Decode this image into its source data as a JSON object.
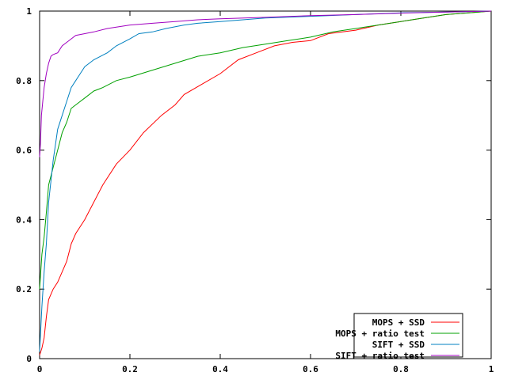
{
  "chart_data": {
    "type": "line",
    "title": "",
    "xlabel": "",
    "ylabel": "",
    "xlim": [
      0,
      1
    ],
    "ylim": [
      0,
      1
    ],
    "grid": false,
    "legend_position": "bottom-right",
    "x_ticks": [
      "0",
      "0.2",
      "0.4",
      "0.6",
      "0.8",
      "1"
    ],
    "y_ticks": [
      "0",
      "0.2",
      "0.4",
      "0.6",
      "0.8",
      "1"
    ],
    "series": [
      {
        "name": "MOPS + SSD",
        "color": "#ff0000",
        "points": [
          [
            0,
            0.01
          ],
          [
            0.005,
            0.03
          ],
          [
            0.01,
            0.06
          ],
          [
            0.015,
            0.12
          ],
          [
            0.02,
            0.17
          ],
          [
            0.03,
            0.2
          ],
          [
            0.04,
            0.22
          ],
          [
            0.05,
            0.25
          ],
          [
            0.06,
            0.28
          ],
          [
            0.07,
            0.33
          ],
          [
            0.08,
            0.36
          ],
          [
            0.1,
            0.4
          ],
          [
            0.12,
            0.45
          ],
          [
            0.14,
            0.5
          ],
          [
            0.17,
            0.56
          ],
          [
            0.2,
            0.6
          ],
          [
            0.23,
            0.65
          ],
          [
            0.27,
            0.7
          ],
          [
            0.3,
            0.73
          ],
          [
            0.32,
            0.76
          ],
          [
            0.36,
            0.79
          ],
          [
            0.4,
            0.82
          ],
          [
            0.44,
            0.86
          ],
          [
            0.48,
            0.88
          ],
          [
            0.52,
            0.9
          ],
          [
            0.56,
            0.91
          ],
          [
            0.6,
            0.915
          ],
          [
            0.64,
            0.935
          ],
          [
            0.7,
            0.945
          ],
          [
            0.75,
            0.96
          ],
          [
            0.8,
            0.97
          ],
          [
            0.85,
            0.98
          ],
          [
            0.9,
            0.99
          ],
          [
            0.95,
            0.995
          ],
          [
            1,
            1
          ]
        ]
      },
      {
        "name": "MOPS + ratio test",
        "color": "#00a000",
        "points": [
          [
            0,
            0.2
          ],
          [
            0.005,
            0.3
          ],
          [
            0.01,
            0.35
          ],
          [
            0.015,
            0.42
          ],
          [
            0.02,
            0.5
          ],
          [
            0.03,
            0.55
          ],
          [
            0.04,
            0.6
          ],
          [
            0.05,
            0.65
          ],
          [
            0.06,
            0.68
          ],
          [
            0.07,
            0.72
          ],
          [
            0.08,
            0.73
          ],
          [
            0.1,
            0.75
          ],
          [
            0.12,
            0.77
          ],
          [
            0.14,
            0.78
          ],
          [
            0.17,
            0.8
          ],
          [
            0.2,
            0.81
          ],
          [
            0.25,
            0.83
          ],
          [
            0.3,
            0.85
          ],
          [
            0.35,
            0.87
          ],
          [
            0.4,
            0.88
          ],
          [
            0.45,
            0.895
          ],
          [
            0.5,
            0.905
          ],
          [
            0.55,
            0.915
          ],
          [
            0.6,
            0.925
          ],
          [
            0.65,
            0.94
          ],
          [
            0.7,
            0.95
          ],
          [
            0.75,
            0.96
          ],
          [
            0.8,
            0.97
          ],
          [
            0.85,
            0.98
          ],
          [
            0.9,
            0.99
          ],
          [
            0.95,
            0.995
          ],
          [
            1,
            1
          ]
        ]
      },
      {
        "name": "SIFT + SSD",
        "color": "#0080c0",
        "points": [
          [
            0,
            0.02
          ],
          [
            0.005,
            0.15
          ],
          [
            0.01,
            0.25
          ],
          [
            0.015,
            0.33
          ],
          [
            0.02,
            0.45
          ],
          [
            0.03,
            0.57
          ],
          [
            0.04,
            0.66
          ],
          [
            0.05,
            0.7
          ],
          [
            0.06,
            0.74
          ],
          [
            0.07,
            0.78
          ],
          [
            0.08,
            0.8
          ],
          [
            0.09,
            0.82
          ],
          [
            0.1,
            0.84
          ],
          [
            0.12,
            0.86
          ],
          [
            0.15,
            0.88
          ],
          [
            0.17,
            0.9
          ],
          [
            0.2,
            0.92
          ],
          [
            0.22,
            0.935
          ],
          [
            0.25,
            0.94
          ],
          [
            0.28,
            0.95
          ],
          [
            0.32,
            0.96
          ],
          [
            0.35,
            0.965
          ],
          [
            0.4,
            0.97
          ],
          [
            0.45,
            0.975
          ],
          [
            0.5,
            0.98
          ],
          [
            0.6,
            0.985
          ],
          [
            0.7,
            0.99
          ],
          [
            0.8,
            0.995
          ],
          [
            0.9,
            0.997
          ],
          [
            1,
            1
          ]
        ]
      },
      {
        "name": "SIFT + ratio test",
        "color": "#a000c0",
        "points": [
          [
            0,
            0.58
          ],
          [
            0.002,
            0.62
          ],
          [
            0.004,
            0.7
          ],
          [
            0.007,
            0.74
          ],
          [
            0.01,
            0.78
          ],
          [
            0.015,
            0.82
          ],
          [
            0.02,
            0.85
          ],
          [
            0.025,
            0.87
          ],
          [
            0.03,
            0.875
          ],
          [
            0.04,
            0.88
          ],
          [
            0.05,
            0.9
          ],
          [
            0.06,
            0.91
          ],
          [
            0.07,
            0.92
          ],
          [
            0.08,
            0.93
          ],
          [
            0.1,
            0.935
          ],
          [
            0.12,
            0.94
          ],
          [
            0.15,
            0.95
          ],
          [
            0.2,
            0.96
          ],
          [
            0.25,
            0.965
          ],
          [
            0.3,
            0.97
          ],
          [
            0.35,
            0.975
          ],
          [
            0.4,
            0.978
          ],
          [
            0.5,
            0.982
          ],
          [
            0.6,
            0.987
          ],
          [
            0.7,
            0.99
          ],
          [
            0.8,
            0.994
          ],
          [
            0.9,
            0.997
          ],
          [
            1,
            1
          ]
        ]
      }
    ]
  }
}
